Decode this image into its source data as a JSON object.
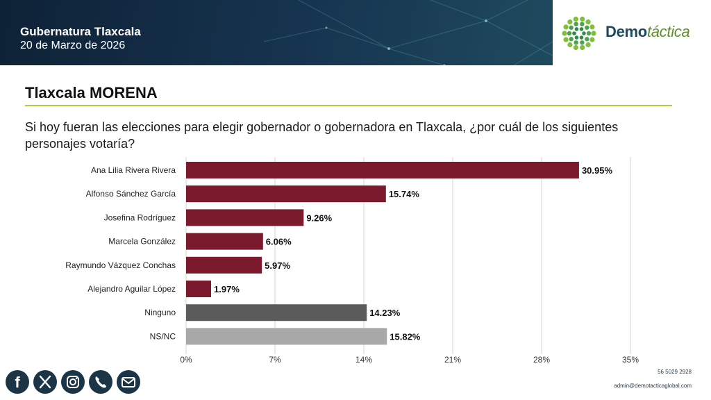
{
  "header": {
    "title": "Gubernatura Tlaxcala",
    "date": "20 de Marzo de 2026"
  },
  "logo": {
    "text_bold": "Demo",
    "text_thin": "táctica"
  },
  "section_title": "Tlaxcala MORENA",
  "question": "Si hoy fueran las elecciones para elegir gobernador o gobernadora en Tlaxcala, ¿por cuál de los siguientes personajes votaría?",
  "chart_data": {
    "type": "bar",
    "orientation": "horizontal",
    "categories": [
      "Ana Lilia Rivera Rivera",
      "Alfonso Sánchez García",
      "Josefina Rodríguez",
      "Marcela González",
      "Raymundo Vázquez Conchas",
      "Alejandro Aguilar López",
      "Ninguno",
      "NS/NC"
    ],
    "values": [
      30.95,
      15.74,
      9.26,
      6.06,
      5.97,
      1.97,
      14.23,
      15.82
    ],
    "value_labels": [
      "30.95%",
      "15.74%",
      "9.26%",
      "6.06%",
      "5.97%",
      "1.97%",
      "14.23%",
      "15.82%"
    ],
    "colors": [
      "#7b1a2c",
      "#7b1a2c",
      "#7b1a2c",
      "#7b1a2c",
      "#7b1a2c",
      "#7b1a2c",
      "#5b5b5b",
      "#a8a8a8"
    ],
    "xlim": [
      0,
      35
    ],
    "xticks": [
      0,
      7,
      14,
      21,
      28,
      35
    ],
    "xtick_labels": [
      "0%",
      "7%",
      "14%",
      "21%",
      "28%",
      "35%"
    ],
    "grid": true
  },
  "footer": {
    "phone": "56 5029 2928",
    "email": "admin@demotacticaglobal.com"
  },
  "social_icons": [
    "facebook-icon",
    "x-icon",
    "instagram-icon",
    "phone-icon",
    "email-icon"
  ],
  "colors": {
    "header_bg": "#163450",
    "accent_rule": "#b5c93a",
    "bar_candidate": "#7b1a2c",
    "bar_ninguno": "#5b5b5b",
    "bar_nsnc": "#a8a8a8",
    "social_bg": "#1b3547"
  }
}
